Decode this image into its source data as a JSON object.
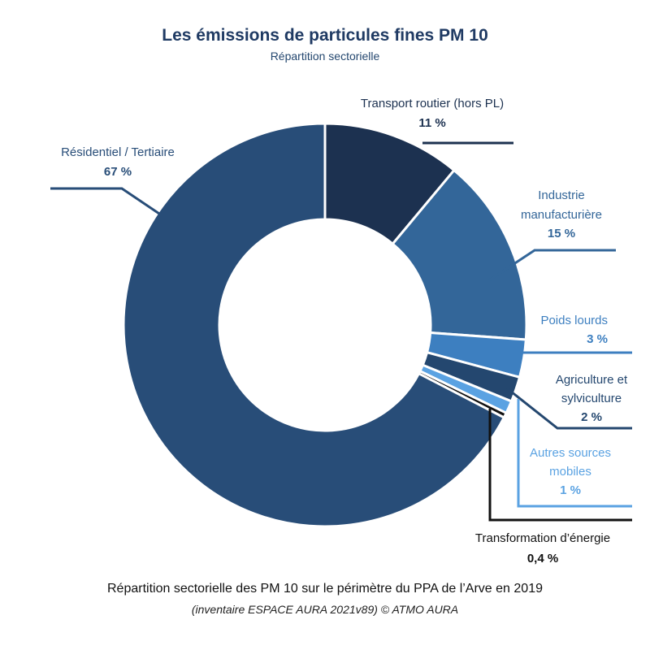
{
  "chart_data": {
    "type": "pie",
    "title": "Les émissions de particules fines PM 10",
    "subtitle": "Répartition sectorielle",
    "slices": [
      {
        "label": "Transport routier (hors PL)",
        "value_label": "11 %",
        "value": 11,
        "color": "#1c3150"
      },
      {
        "label": "Industrie manufacturière",
        "value_label": "15 %",
        "value": 15,
        "color": "#336699"
      },
      {
        "label": "Poids lourds",
        "value_label": "3 %",
        "value": 3,
        "color": "#3d7fc0"
      },
      {
        "label": "Agriculture et sylviculture",
        "value_label": "2 %",
        "value": 2,
        "color": "#24476f"
      },
      {
        "label": "Autres sources mobiles",
        "value_label": "1 %",
        "value": 1,
        "color": "#5aa2e2"
      },
      {
        "label": "Transformation d’énergie",
        "value_label": "0,4 %",
        "value": 0.4,
        "color": "#111111"
      },
      {
        "label": "Résidentiel / Tertiaire",
        "value_label": "67 %",
        "value": 67,
        "color": "#284d78"
      }
    ],
    "footnote": "Répartition sectorielle des PM 10 sur le périmètre du PPA de l’Arve en 2019",
    "source": "(inventaire ESPACE AURA 2021v89) © ATMO AURA"
  },
  "labels": {
    "transport_line1": "Transport routier (hors PL)",
    "industrie_line1": "Industrie",
    "industrie_line2": "manufacturière",
    "poids_line1": "Poids lourds",
    "agri_line1": "Agriculture et",
    "agri_line2": "sylviculture",
    "autres_line1": "Autres sources",
    "autres_line2": "mobiles",
    "transfo_line1": "Transformation d’énergie",
    "resid_line1": "Résidentiel / Tertiaire"
  }
}
